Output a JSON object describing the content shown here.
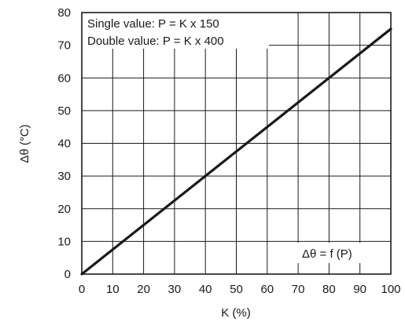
{
  "chart_data": {
    "type": "line",
    "xlabel": "K (%)",
    "ylabel": "Δθ (°C)",
    "xlim": [
      0,
      100
    ],
    "ylim": [
      0,
      80
    ],
    "x_ticks": [
      0,
      10,
      20,
      30,
      40,
      50,
      60,
      70,
      80,
      90,
      100
    ],
    "y_ticks": [
      0,
      10,
      20,
      30,
      40,
      50,
      60,
      70,
      80
    ],
    "grid": true,
    "series": [
      {
        "x": [
          0,
          100
        ],
        "y": [
          0,
          75
        ]
      }
    ],
    "annotations": {
      "single_value": "Single value: P = K x 150",
      "double_value": "Double value: P = K x 400",
      "function_label": "Δθ = f (P)"
    },
    "colors": {
      "line": "#1a1a1a",
      "grid": "#1a1a1a"
    }
  }
}
